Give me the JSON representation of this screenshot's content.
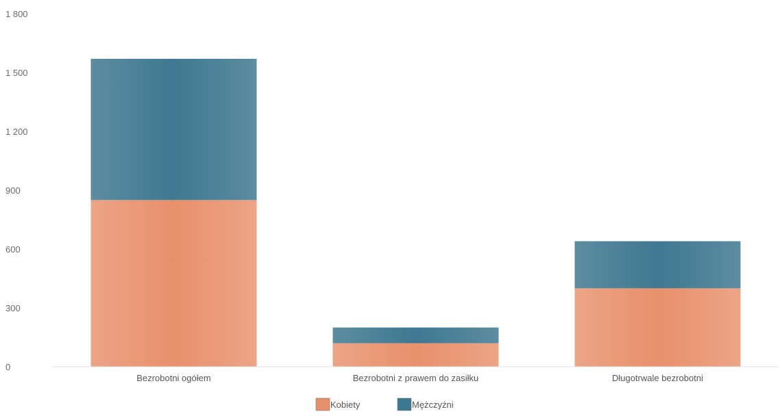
{
  "chart_data": {
    "type": "bar",
    "stacked": true,
    "categories": [
      "Bezrobotni ogółem",
      "Bezrobotni z prawem do zasiłku",
      "Długotrwale bezrobotni"
    ],
    "series": [
      {
        "name": "Kobiety",
        "values": [
          850,
          120,
          400
        ],
        "color": "#e8906c"
      },
      {
        "name": "Mężczyźni",
        "values": [
          720,
          80,
          240
        ],
        "color": "#3f7891"
      }
    ],
    "ylim": [
      0,
      1800
    ],
    "yticks": [
      0,
      300,
      600,
      900,
      1200,
      1500,
      1800
    ],
    "ytick_labels": [
      "0",
      "300",
      "600",
      "900",
      "1 200",
      "1 500",
      "1 800"
    ],
    "grid": false,
    "legend_position": "bottom-center"
  }
}
